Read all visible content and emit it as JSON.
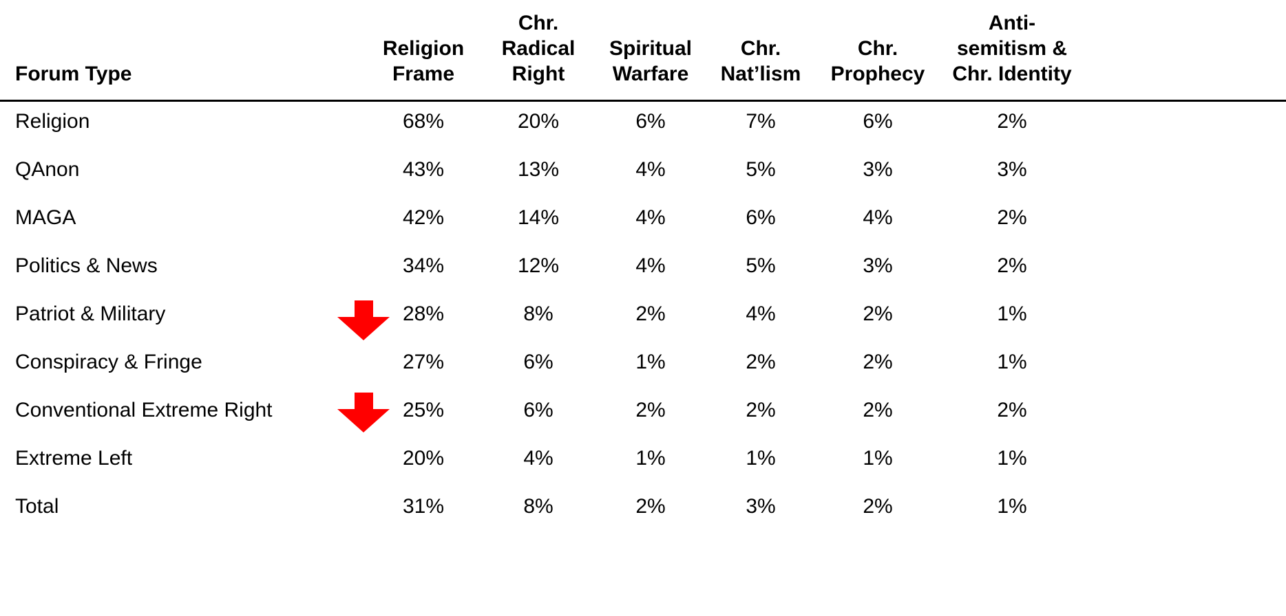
{
  "table": {
    "headers": [
      "Forum Type",
      "Religion\nFrame",
      "Chr.\nRadical\nRight",
      "Spiritual\nWarfare",
      "Chr.\nNat’lism",
      "Chr.\nProphecy",
      "Anti-\nsemitism &\nChr. Identity"
    ],
    "rows": [
      [
        "Religion",
        "68%",
        "20%",
        "6%",
        "7%",
        "6%",
        "2%"
      ],
      [
        "QAnon",
        "43%",
        "13%",
        "4%",
        "5%",
        "3%",
        "3%"
      ],
      [
        "MAGA",
        "42%",
        "14%",
        "4%",
        "6%",
        "4%",
        "2%"
      ],
      [
        "Politics & News",
        "34%",
        "12%",
        "4%",
        "5%",
        "3%",
        "2%"
      ],
      [
        "Patriot & Military",
        "28%",
        "8%",
        "2%",
        "4%",
        "2%",
        "1%"
      ],
      [
        "Conspiracy & Fringe",
        "27%",
        "6%",
        "1%",
        "2%",
        "2%",
        "1%"
      ],
      [
        "Conventional Extreme Right",
        "25%",
        "6%",
        "2%",
        "2%",
        "2%",
        "2%"
      ],
      [
        "Extreme Left",
        "20%",
        "4%",
        "1%",
        "1%",
        "1%",
        "1%"
      ],
      [
        "Total",
        "31%",
        "8%",
        "2%",
        "3%",
        "2%",
        "1%"
      ]
    ]
  }
}
